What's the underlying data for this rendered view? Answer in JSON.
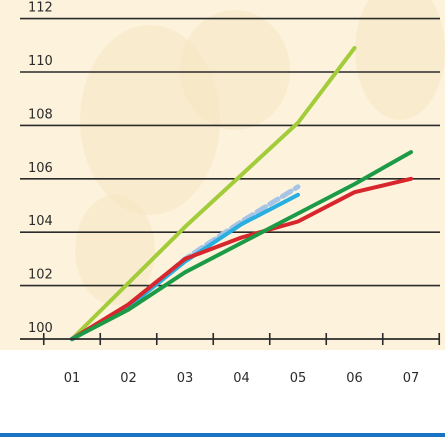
{
  "chart_data": {
    "type": "line",
    "title": "",
    "xlabel": "",
    "ylabel": "",
    "categories": [
      "01",
      "02",
      "03",
      "04",
      "05",
      "06",
      "07"
    ],
    "y_ticks": [
      "100",
      "102",
      "104",
      "106",
      "108",
      "110",
      "112"
    ],
    "ylim": [
      100,
      112
    ],
    "xlim": [
      1,
      7
    ],
    "grid": true,
    "legend": "none",
    "background_color": "#fdf3dc",
    "axis_color": "#2b2b2b",
    "footer_rule_color": "#1a73c4",
    "series": [
      {
        "color": "#a3cc3a",
        "style": "solid",
        "x": [
          1.0,
          3.0,
          5.0,
          6.0
        ],
        "y": [
          100.0,
          104.2,
          108.1,
          110.9
        ]
      },
      {
        "color": "#a7c4e6",
        "style": "dashed",
        "x": [
          1.0,
          2.0,
          3.0,
          4.0,
          5.0
        ],
        "y": [
          100.0,
          101.2,
          103.0,
          104.4,
          105.7
        ]
      },
      {
        "color": "#29aee0",
        "style": "solid",
        "x": [
          1.0,
          2.0,
          3.0,
          4.0,
          5.0
        ],
        "y": [
          100.0,
          101.2,
          102.9,
          104.3,
          105.4
        ]
      },
      {
        "color": "#d7262c",
        "style": "solid",
        "x": [
          1.0,
          2.0,
          3.0,
          4.0,
          5.0,
          6.0,
          7.0
        ],
        "y": [
          100.0,
          101.3,
          103.0,
          103.8,
          104.4,
          105.5,
          106.0
        ]
      },
      {
        "color": "#1d9a46",
        "style": "solid",
        "x": [
          1.0,
          2.0,
          3.0,
          4.0,
          5.0,
          6.0,
          7.0
        ],
        "y": [
          100.0,
          101.1,
          102.5,
          103.6,
          104.7,
          105.8,
          107.0
        ]
      }
    ]
  }
}
